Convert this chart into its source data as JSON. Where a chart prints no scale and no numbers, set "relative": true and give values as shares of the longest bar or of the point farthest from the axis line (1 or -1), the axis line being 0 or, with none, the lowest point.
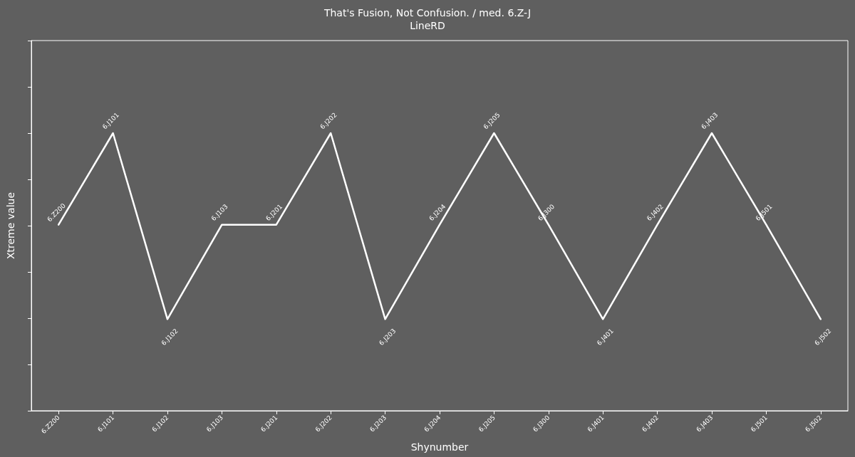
{
  "chart_data": {
    "type": "line",
    "title": "That's Fusion, Not Confusion. / med. 6.Z-J",
    "subtitle": "LineRD",
    "xlabel": "Shynumber",
    "ylabel": "Xtreme value",
    "relative": true,
    "categories": [
      "6.Z200",
      "6.J101",
      "6.J102",
      "6.J103",
      "6.J201",
      "6.J202",
      "6.J203",
      "6.J204",
      "6.J205",
      "6.J300",
      "6.J401",
      "6.J402",
      "6.J403",
      "6.J501",
      "6.J502"
    ],
    "series": [
      {
        "color": "#ffffff",
        "values": [
          0.67,
          1,
          0.33,
          0.67,
          0.67,
          1,
          0.33,
          0.67,
          1,
          0.67,
          0.33,
          0.67,
          1,
          0.67,
          0.33
        ]
      }
    ],
    "annotations": [
      {
        "text": "6.Z200",
        "x": "6.Z200",
        "y": 0.67
      },
      {
        "text": "6.J101",
        "x": "6.J101",
        "y": 1
      },
      {
        "text": "6.J102",
        "x": "6.J102",
        "y": 0.33
      },
      {
        "text": "6.J103",
        "x": "6.J103",
        "y": 0.67
      },
      {
        "text": "6.J201",
        "x": "6.J201",
        "y": 0.67
      },
      {
        "text": "6.J202",
        "x": "6.J202",
        "y": 1
      },
      {
        "text": "6.J203",
        "x": "6.J203",
        "y": 0.33
      },
      {
        "text": "6.J204",
        "x": "6.J204",
        "y": 0.67
      },
      {
        "text": "6.J205",
        "x": "6.J205",
        "y": 1
      },
      {
        "text": "6.J300",
        "x": "6.J300",
        "y": 0.67
      },
      {
        "text": "6.J401",
        "x": "6.J401",
        "y": 0.33
      },
      {
        "text": "6.J402",
        "x": "6.J402",
        "y": 0.67
      },
      {
        "text": "6.J403",
        "x": "6.J403",
        "y": 1
      },
      {
        "text": "6.J501",
        "x": "6.J501",
        "y": 0.67
      },
      {
        "text": "6.J502",
        "x": "6.J502",
        "y": 0.33
      }
    ],
    "marker": "none",
    "line_style": "solid",
    "grid": false
  }
}
